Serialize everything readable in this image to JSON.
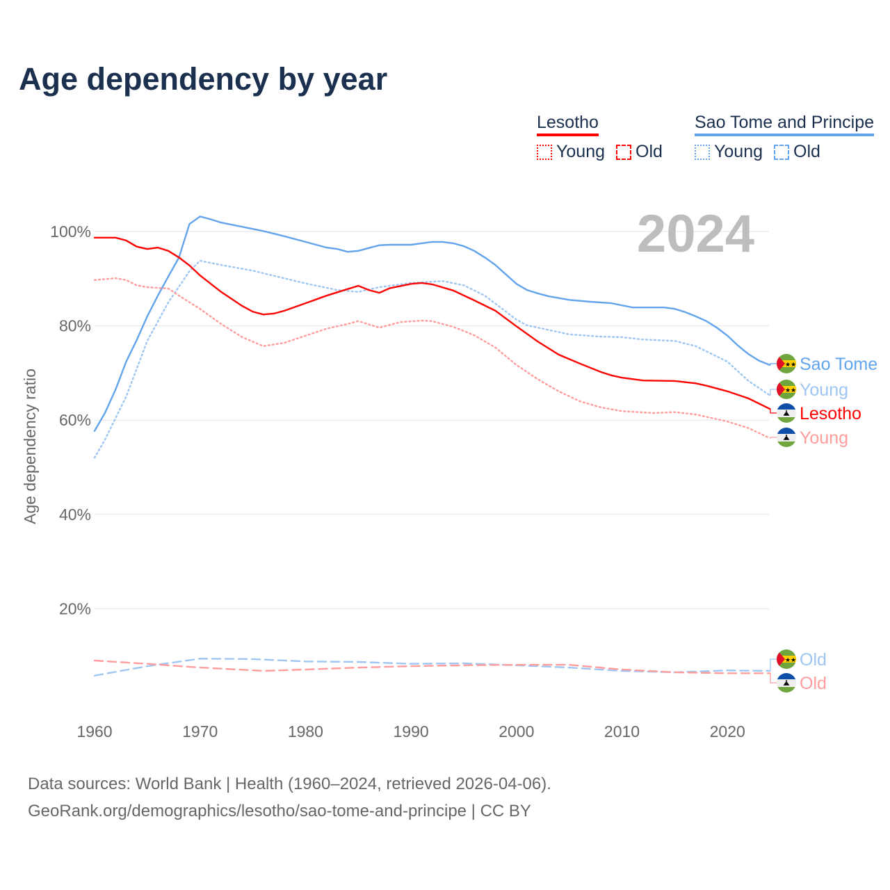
{
  "title": "Age dependency by year",
  "legend": {
    "groups": [
      {
        "name": "Lesotho",
        "color": "#ff0000",
        "items": [
          "Young",
          "Old"
        ]
      },
      {
        "name": "Sao Tome and Principe",
        "color": "#62a4ec",
        "items": [
          "Young",
          "Old"
        ]
      }
    ]
  },
  "year_overlay": "2024",
  "footer": {
    "line1": "Data sources: World Bank | Health (1960–2024, retrieved 2026-04-06).",
    "line2": "GeoRank.org/demographics/lesotho/sao-tome-and-principe | CC BY"
  },
  "chart_data": {
    "type": "line",
    "title": "Age dependency by year",
    "xlabel": "",
    "ylabel": "Age dependency ratio",
    "xlim": [
      1960,
      2024
    ],
    "ylim": [
      0,
      110
    ],
    "xticks": [
      1960,
      1970,
      1980,
      1990,
      2000,
      2010,
      2020
    ],
    "xtick_labels": [
      "1960",
      "1970",
      "1980",
      "1990",
      "2000",
      "2010",
      "2020"
    ],
    "yticks": [
      20,
      40,
      60,
      80,
      100
    ],
    "ytick_labels": [
      "20%",
      "40%",
      "60%",
      "80%",
      "100%"
    ],
    "grid": true,
    "series": [
      {
        "name": "Sao Tome and Principe",
        "end_label": "Sao Tome",
        "country": "stp",
        "style": "solid",
        "color": "#62a4ec",
        "label_color": "#62a4ec",
        "x": [
          1960,
          1961,
          1962,
          1963,
          1964,
          1965,
          1966,
          1967,
          1968,
          1969,
          1970,
          1971,
          1972,
          1974,
          1976,
          1978,
          1980,
          1982,
          1983,
          1984,
          1985,
          1986,
          1987,
          1988,
          1990,
          1992,
          1993,
          1994,
          1995,
          1996,
          1997,
          1998,
          1999,
          2000,
          2001,
          2002,
          2003,
          2005,
          2007,
          2009,
          2011,
          2014,
          2015,
          2016,
          2017,
          2018,
          2019,
          2020,
          2021,
          2022,
          2023,
          2024
        ],
        "y": [
          57.7,
          61.6,
          66.5,
          72.4,
          77,
          82,
          86.4,
          90.5,
          94.5,
          101.6,
          103.2,
          102.6,
          101.9,
          101,
          100.1,
          99,
          97.8,
          96.6,
          96.3,
          95.7,
          95.9,
          96.5,
          97.1,
          97.2,
          97.2,
          97.8,
          97.8,
          97.5,
          96.9,
          95.9,
          94.5,
          92.9,
          90.9,
          88.9,
          87.6,
          86.9,
          86.3,
          85.5,
          85.1,
          84.8,
          83.9,
          83.9,
          83.6,
          82.9,
          82,
          81,
          79.6,
          77.9,
          75.8,
          74,
          72.6,
          71.7
        ]
      },
      {
        "name": "Sao Tome and Principe Young",
        "end_label": "Young",
        "country": "stp",
        "style": "dotted",
        "color": "#9fc6f2",
        "label_color": "#9fc6f2",
        "x": [
          1960,
          1961,
          1963,
          1965,
          1967,
          1969,
          1970,
          1972,
          1975,
          1980,
          1983,
          1985,
          1987,
          1990,
          1993,
          1995,
          1997,
          2000,
          2001,
          2005,
          2008,
          2010,
          2012,
          2015,
          2017,
          2020,
          2022,
          2024
        ],
        "y": [
          52,
          55.9,
          65,
          76.8,
          85,
          91.6,
          93.8,
          92.9,
          91.7,
          89,
          87.6,
          87.2,
          88.2,
          89.1,
          89.5,
          88.6,
          86.4,
          81.3,
          80.1,
          78.2,
          77.7,
          77.6,
          77.1,
          76.8,
          75.7,
          72.4,
          68.3,
          65.3
        ]
      },
      {
        "name": "Lesotho",
        "end_label": "Lesotho",
        "country": "lso",
        "style": "solid",
        "color": "#ff0000",
        "label_color": "#ff0000",
        "x": [
          1960,
          1962,
          1963,
          1964,
          1965,
          1966,
          1967,
          1968,
          1969,
          1970,
          1972,
          1974,
          1975,
          1976,
          1977,
          1978,
          1980,
          1982,
          1984,
          1985,
          1986,
          1987,
          1988,
          1990,
          1991,
          1992,
          1994,
          1996,
          1998,
          2000,
          2002,
          2004,
          2006,
          2008,
          2009,
          2010,
          2012,
          2015,
          2017,
          2018,
          2020,
          2022,
          2024
        ],
        "y": [
          98.7,
          98.7,
          98.1,
          96.8,
          96.3,
          96.6,
          95.9,
          94.5,
          92.8,
          90.7,
          87.2,
          84.2,
          83,
          82.4,
          82.6,
          83.2,
          84.8,
          86.4,
          87.8,
          88.5,
          87.6,
          87,
          88,
          88.9,
          89.1,
          88.8,
          87.5,
          85.4,
          83.2,
          79.9,
          76.7,
          73.9,
          72,
          70.2,
          69.5,
          69,
          68.4,
          68.3,
          67.8,
          67.3,
          66.1,
          64.6,
          62.4
        ]
      },
      {
        "name": "Lesotho Young",
        "end_label": "Young",
        "country": "lso",
        "style": "dotted",
        "color": "#ff9c9c",
        "label_color": "#ff9c9c",
        "x": [
          1960,
          1962,
          1963,
          1964,
          1965,
          1967,
          1968,
          1970,
          1972,
          1974,
          1976,
          1978,
          1980,
          1982,
          1984,
          1985,
          1987,
          1989,
          1991,
          1992,
          1994,
          1996,
          1998,
          2000,
          2002,
          2004,
          2006,
          2008,
          2010,
          2013,
          2015,
          2017,
          2020,
          2022,
          2024
        ],
        "y": [
          89.7,
          90.1,
          89.7,
          88.6,
          88.2,
          87.9,
          86.4,
          83.6,
          80.4,
          77.6,
          75.7,
          76.4,
          77.9,
          79.4,
          80.4,
          81,
          79.6,
          80.8,
          81.1,
          81,
          79.8,
          78,
          75.4,
          71.7,
          68.7,
          66.1,
          64,
          62.7,
          61.9,
          61.5,
          61.7,
          61.2,
          59.7,
          58.3,
          56.2
        ]
      },
      {
        "name": "Sao Tome and Principe Old",
        "end_label": "Old",
        "country": "stp",
        "style": "dashed",
        "color": "#9fc6f2",
        "label_color": "#9fc6f2",
        "x": [
          1960,
          1965,
          1970,
          1975,
          1980,
          1985,
          1990,
          1995,
          2000,
          2005,
          2010,
          2015,
          2020,
          2024
        ],
        "y": [
          5.8,
          7.8,
          9.4,
          9.3,
          8.8,
          8.7,
          8.3,
          8.4,
          8,
          7.5,
          6.8,
          6.5,
          6.9,
          6.8
        ]
      },
      {
        "name": "Lesotho Old",
        "end_label": "Old",
        "country": "lso",
        "style": "dashed",
        "color": "#ff9c9c",
        "label_color": "#ff9c9c",
        "x": [
          1960,
          1965,
          1970,
          1976,
          1980,
          1985,
          1990,
          1995,
          2000,
          2005,
          2010,
          2015,
          2020,
          2024
        ],
        "y": [
          9,
          8.3,
          7.5,
          6.8,
          7.1,
          7.5,
          7.8,
          8,
          8.1,
          8.1,
          7.1,
          6.5,
          6.3,
          6.3
        ]
      }
    ]
  }
}
